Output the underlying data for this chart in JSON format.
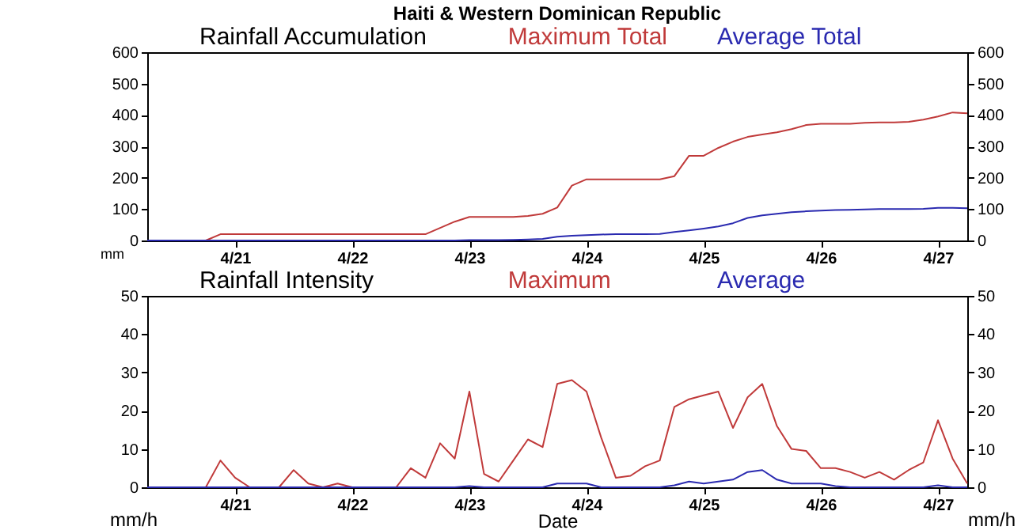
{
  "chart_data": [
    {
      "type": "line",
      "title": "Haiti & Western Dominican Republic",
      "subtitle": "Rainfall Accumulation",
      "ylabel": "mm",
      "categories": [
        null,
        null,
        null,
        null,
        null,
        null,
        "4/21",
        null,
        null,
        null,
        null,
        null,
        null,
        null,
        "4/22",
        null,
        null,
        null,
        null,
        null,
        null,
        null,
        "4/23",
        null,
        null,
        null,
        null,
        null,
        null,
        null,
        "4/24",
        null,
        null,
        null,
        null,
        null,
        null,
        null,
        "4/25",
        null,
        null,
        null,
        null,
        null,
        null,
        null,
        "4/26",
        null,
        null,
        null,
        null,
        null,
        null,
        null,
        "4/27",
        null,
        null
      ],
      "series": [
        {
          "name": "Maximum Total",
          "color": "#c03a3a",
          "values": [
            null,
            null,
            null,
            0,
            0,
            20,
            20,
            20,
            20,
            20,
            20,
            20,
            20,
            20,
            20,
            20,
            20,
            20,
            20,
            20,
            40,
            60,
            75,
            75,
            75,
            75,
            78,
            85,
            105,
            175,
            195,
            195,
            195,
            195,
            195,
            195,
            205,
            270,
            270,
            295,
            315,
            330,
            338,
            345,
            355,
            368,
            372,
            372,
            372,
            375,
            376,
            376,
            378,
            385,
            395,
            408,
            405
          ]
        },
        {
          "name": "Average Total",
          "color": "#2a2ab0",
          "values": [
            0,
            0,
            0,
            0,
            0,
            0,
            0,
            0,
            0,
            0,
            0,
            0,
            0,
            0,
            0,
            0,
            0,
            0,
            0,
            0,
            0,
            0,
            1,
            1,
            1,
            2,
            3,
            5,
            12,
            15,
            17,
            19,
            20,
            20,
            20,
            21,
            27,
            32,
            38,
            45,
            55,
            72,
            80,
            85,
            90,
            93,
            95,
            97,
            98,
            99,
            100,
            100,
            100,
            101,
            104,
            104,
            103
          ]
        }
      ],
      "ylim": [
        0,
        600
      ],
      "yticks": [
        0,
        100,
        200,
        300,
        400,
        500,
        600
      ],
      "y2lim": [
        0,
        600
      ],
      "y2ticks": [
        0,
        100,
        200,
        300,
        400,
        500,
        600
      ],
      "legend": "top",
      "grid": false
    },
    {
      "type": "line",
      "title": "Rainfall Intensity",
      "xlabel": "Date",
      "ylabel": "mm/h",
      "y2label": "mm/h",
      "categories": [
        null,
        null,
        null,
        null,
        null,
        null,
        "4/21",
        null,
        null,
        null,
        null,
        null,
        null,
        null,
        "4/22",
        null,
        null,
        null,
        null,
        null,
        null,
        null,
        "4/23",
        null,
        null,
        null,
        null,
        null,
        null,
        null,
        "4/24",
        null,
        null,
        null,
        null,
        null,
        null,
        null,
        "4/25",
        null,
        null,
        null,
        null,
        null,
        null,
        null,
        "4/26",
        null,
        null,
        null,
        null,
        null,
        null,
        null,
        "4/27",
        null,
        null
      ],
      "series": [
        {
          "name": "Maximum",
          "color": "#c03a3a",
          "values": [
            null,
            null,
            null,
            0,
            0,
            7,
            2.5,
            0,
            0,
            0,
            4.5,
            1,
            0,
            1,
            0,
            0,
            0,
            0,
            5,
            2.5,
            11.5,
            7.5,
            25,
            3.5,
            1.5,
            7,
            12.5,
            10.5,
            27,
            28,
            25,
            13,
            2.5,
            3,
            5.5,
            7,
            21,
            23,
            24,
            25,
            15.5,
            23.5,
            27,
            16,
            10,
            9.5,
            5,
            5,
            4,
            2.5,
            4,
            2,
            4.5,
            6.5,
            17.5,
            7.5,
            1
          ]
        },
        {
          "name": "Average",
          "color": "#2a2ab0",
          "values": [
            0,
            0,
            0,
            0,
            0,
            0,
            0,
            0,
            0,
            0,
            0,
            0,
            0,
            0,
            0,
            0,
            0,
            0,
            0,
            0,
            0,
            0,
            0.3,
            0,
            0,
            0,
            0,
            0,
            1,
            1,
            1,
            0,
            0,
            0,
            0,
            0,
            0.5,
            1.5,
            1,
            1.5,
            2,
            4,
            4.5,
            2,
            1,
            1,
            1,
            0.3,
            0,
            0,
            0,
            0,
            0,
            0,
            0.5,
            0,
            0
          ]
        }
      ],
      "ylim": [
        0,
        50
      ],
      "yticks": [
        0,
        10,
        20,
        30,
        40,
        50
      ],
      "y2lim": [
        0,
        50
      ],
      "y2ticks": [
        0,
        10,
        20,
        30,
        40,
        50
      ],
      "legend": "top",
      "grid": false
    }
  ]
}
